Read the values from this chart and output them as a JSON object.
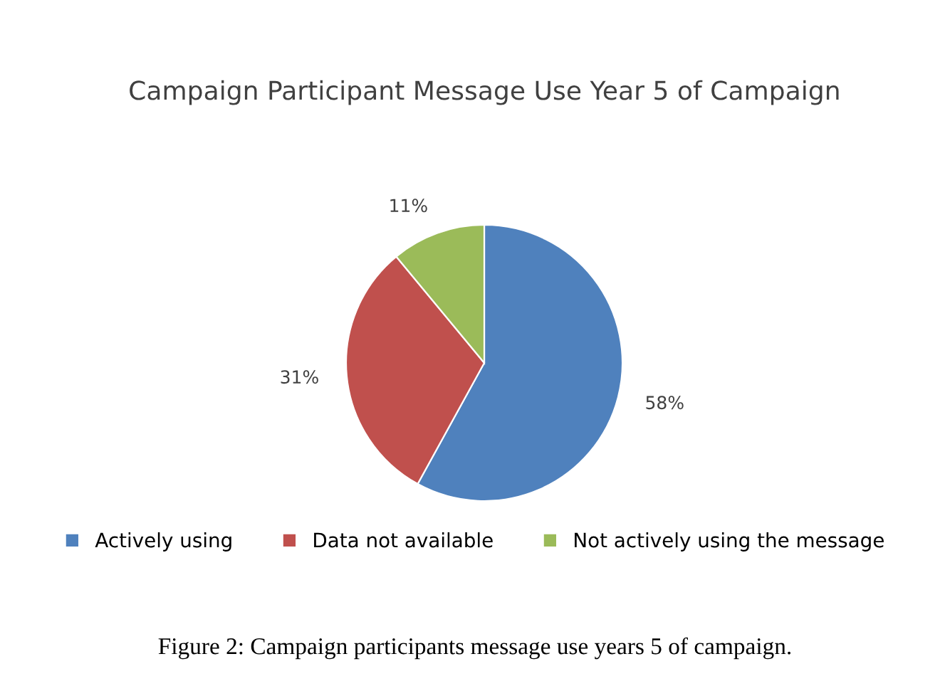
{
  "chart_data": {
    "type": "pie",
    "title": "Campaign Participant Message Use Year 5 of Campaign",
    "categories": [
      "Actively using",
      "Data not available",
      "Not actively using the message"
    ],
    "values": [
      58,
      31,
      11
    ],
    "colors": [
      "#4f81bd",
      "#c0504d",
      "#9bbb59"
    ],
    "value_labels": [
      "58%",
      "31%",
      "11%"
    ],
    "legend": "bottom",
    "annotations": [
      "Figure 2: Campaign participants message use years 5 of campaign."
    ]
  }
}
